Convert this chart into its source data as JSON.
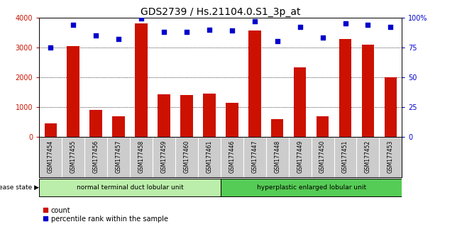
{
  "title": "GDS2739 / Hs.21104.0.S1_3p_at",
  "samples": [
    "GSM177454",
    "GSM177455",
    "GSM177456",
    "GSM177457",
    "GSM177458",
    "GSM177459",
    "GSM177460",
    "GSM177461",
    "GSM177446",
    "GSM177447",
    "GSM177448",
    "GSM177449",
    "GSM177450",
    "GSM177451",
    "GSM177452",
    "GSM177453"
  ],
  "counts": [
    450,
    3050,
    900,
    700,
    3800,
    1420,
    1390,
    1450,
    1150,
    3560,
    600,
    2330,
    680,
    3280,
    3100,
    2000
  ],
  "percentiles": [
    75,
    94,
    85,
    82,
    99,
    88,
    88,
    90,
    89,
    97,
    80,
    92,
    83,
    95,
    94,
    92
  ],
  "bar_color": "#cc1100",
  "marker_color": "#0000cc",
  "group1_label": "normal terminal duct lobular unit",
  "group2_label": "hyperplastic enlarged lobular unit",
  "group1_count": 8,
  "group2_count": 8,
  "disease_state_label": "disease state",
  "legend_count_label": "count",
  "legend_pct_label": "percentile rank within the sample",
  "ylim_left": [
    0,
    4000
  ],
  "ylim_right": [
    0,
    100
  ],
  "yticks_left": [
    0,
    1000,
    2000,
    3000,
    4000
  ],
  "yticks_right": [
    0,
    25,
    50,
    75,
    100
  ],
  "ytick_labels_right": [
    "0",
    "25",
    "50",
    "75",
    "100%"
  ],
  "bg_color": "#ffffff",
  "plot_bg_color": "#ffffff",
  "group1_color": "#bbeeaa",
  "group2_color": "#55cc55",
  "tick_label_bg": "#cccccc",
  "title_fontsize": 10,
  "tick_fontsize": 7,
  "label_fontsize": 7.5
}
